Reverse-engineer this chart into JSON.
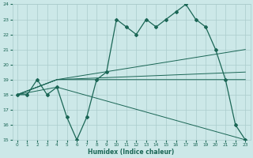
{
  "xlabel": "Humidex (Indice chaleur)",
  "xlim": [
    -0.5,
    23.5
  ],
  "ylim": [
    15,
    24
  ],
  "yticks": [
    15,
    16,
    17,
    18,
    19,
    20,
    21,
    22,
    23,
    24
  ],
  "xticks": [
    0,
    1,
    2,
    3,
    4,
    5,
    6,
    7,
    8,
    9,
    10,
    11,
    12,
    13,
    14,
    15,
    16,
    17,
    18,
    19,
    20,
    21,
    22,
    23
  ],
  "bg_color": "#cce8e8",
  "grid_color": "#aacccc",
  "line_color": "#1a6655",
  "line1_x": [
    0,
    1,
    2,
    3,
    4,
    5,
    6,
    7,
    8,
    9,
    10,
    11,
    12,
    13,
    14,
    15,
    16,
    17,
    18,
    19,
    20,
    21,
    22,
    23
  ],
  "line1_y": [
    18.0,
    18.0,
    19.0,
    18.0,
    18.5,
    16.5,
    15.0,
    16.5,
    19.0,
    19.5,
    23.0,
    22.5,
    22.0,
    23.0,
    22.5,
    23.0,
    23.5,
    24.0,
    23.0,
    22.5,
    21.0,
    19.0,
    16.0,
    15.0
  ],
  "line2_x": [
    0,
    4,
    23
  ],
  "line2_y": [
    18.0,
    19.0,
    19.5
  ],
  "line3_x": [
    0,
    4,
    23
  ],
  "line3_y": [
    18.0,
    19.0,
    19.0
  ],
  "line4_x": [
    0,
    4,
    23
  ],
  "line4_y": [
    18.0,
    19.0,
    21.0
  ],
  "line5_x": [
    0,
    4,
    23
  ],
  "line5_y": [
    18.0,
    18.5,
    15.0
  ]
}
